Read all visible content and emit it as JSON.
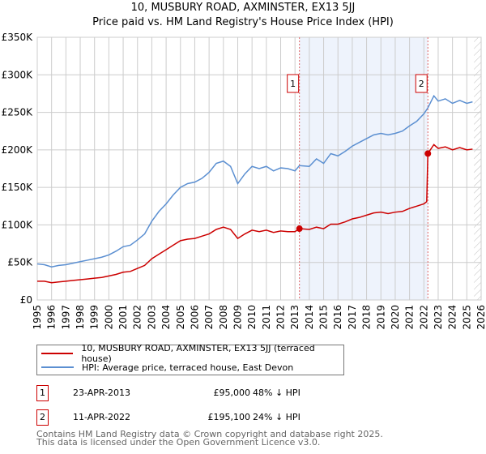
{
  "chart_data": {
    "type": "line",
    "title": "10, MUSBURY ROAD, AXMINSTER, EX13 5JJ",
    "subtitle": "Price paid vs. HM Land Registry's House Price Index (HPI)",
    "ylim": [
      0,
      350000
    ],
    "xlim": [
      1995,
      2026
    ],
    "y_ticks": [
      {
        "v": 0,
        "label": "£0"
      },
      {
        "v": 50000,
        "label": "£50K"
      },
      {
        "v": 100000,
        "label": "£100K"
      },
      {
        "v": 150000,
        "label": "£150K"
      },
      {
        "v": 200000,
        "label": "£200K"
      },
      {
        "v": 250000,
        "label": "£250K"
      },
      {
        "v": 300000,
        "label": "£300K"
      },
      {
        "v": 350000,
        "label": "£350K"
      }
    ],
    "x_ticks": [
      "1995",
      "1996",
      "1997",
      "1998",
      "1999",
      "2000",
      "2001",
      "2002",
      "2003",
      "2004",
      "2005",
      "2006",
      "2007",
      "2008",
      "2009",
      "2010",
      "2011",
      "2012",
      "2013",
      "2014",
      "2015",
      "2016",
      "2017",
      "2018",
      "2019",
      "2020",
      "2021",
      "2022",
      "2023",
      "2024",
      "2025",
      "2026"
    ],
    "grid": true,
    "shaded_range": [
      2013.31,
      2022.28
    ],
    "forecast_hatch_from": 2025.5,
    "series": [
      {
        "name": "10, MUSBURY ROAD, AXMINSTER, EX13 5JJ (terraced house)",
        "color": "#cc0000",
        "x": [
          1995,
          1995.5,
          1996,
          1996.5,
          1997,
          1997.5,
          1998,
          1998.5,
          1999,
          1999.5,
          2000,
          2000.5,
          2001,
          2001.5,
          2002,
          2002.5,
          2003,
          2003.5,
          2004,
          2004.5,
          2005,
          2005.5,
          2006,
          2006.5,
          2007,
          2007.5,
          2008,
          2008.5,
          2009,
          2009.5,
          2010,
          2010.5,
          2011,
          2011.5,
          2012,
          2012.5,
          2013,
          2013.31,
          2014,
          2014.5,
          2015,
          2015.5,
          2016,
          2016.5,
          2017,
          2017.5,
          2018,
          2018.5,
          2019,
          2019.5,
          2020,
          2020.5,
          2021,
          2021.5,
          2022,
          2022.2,
          2022.28,
          2022.7,
          2023,
          2023.5,
          2024,
          2024.5,
          2025,
          2025.4
        ],
        "y": [
          25000,
          25000,
          23000,
          24000,
          25000,
          26000,
          27000,
          28000,
          29000,
          30000,
          32000,
          34000,
          37000,
          38000,
          42000,
          46000,
          55000,
          61000,
          67000,
          73000,
          79000,
          81000,
          82000,
          85000,
          88000,
          94000,
          97000,
          94000,
          82000,
          88000,
          93000,
          91000,
          93000,
          90000,
          92000,
          91000,
          91000,
          95000,
          94000,
          97000,
          95000,
          101000,
          101000,
          104000,
          108000,
          110000,
          113000,
          116000,
          117000,
          115000,
          117000,
          118000,
          122000,
          125000,
          128000,
          131000,
          195100,
          207000,
          202000,
          204000,
          200000,
          203000,
          200000,
          201000
        ]
      },
      {
        "name": "HPI: Average price, terraced house, East Devon",
        "color": "#5b8fd1",
        "x": [
          1995,
          1995.5,
          1996,
          1996.5,
          1997,
          1997.5,
          1998,
          1998.5,
          1999,
          1999.5,
          2000,
          2000.5,
          2001,
          2001.5,
          2002,
          2002.5,
          2003,
          2003.5,
          2004,
          2004.5,
          2005,
          2005.5,
          2006,
          2006.5,
          2007,
          2007.5,
          2008,
          2008.5,
          2009,
          2009.5,
          2010,
          2010.5,
          2011,
          2011.5,
          2012,
          2012.5,
          2013,
          2013.31,
          2014,
          2014.5,
          2015,
          2015.5,
          2016,
          2016.5,
          2017,
          2017.5,
          2018,
          2018.5,
          2019,
          2019.5,
          2020,
          2020.5,
          2021,
          2021.5,
          2022,
          2022.28,
          2022.7,
          2023,
          2023.5,
          2024,
          2024.5,
          2025,
          2025.4
        ],
        "y": [
          48000,
          47000,
          44000,
          46000,
          47000,
          49000,
          51000,
          53000,
          55000,
          57000,
          60000,
          65000,
          71000,
          73000,
          80000,
          88000,
          105000,
          118000,
          128000,
          140000,
          150000,
          155000,
          157000,
          162000,
          170000,
          182000,
          185000,
          178000,
          155000,
          168000,
          178000,
          175000,
          178000,
          172000,
          176000,
          175000,
          172000,
          179000,
          178000,
          188000,
          182000,
          195000,
          192000,
          198000,
          205000,
          210000,
          215000,
          220000,
          222000,
          220000,
          222000,
          225000,
          232000,
          238000,
          248000,
          256000,
          272000,
          265000,
          268000,
          262000,
          266000,
          262000,
          264000
        ]
      }
    ],
    "markers": [
      {
        "id": "1",
        "x": 2013.31,
        "y": 95000
      },
      {
        "id": "2",
        "x": 2022.28,
        "y": 195100
      }
    ]
  },
  "legend": {
    "red": "10, MUSBURY ROAD, AXMINSTER, EX13 5JJ (terraced house)",
    "blue": "HPI: Average price, terraced house, East Devon"
  },
  "transactions": [
    {
      "id": "1",
      "date": "23-APR-2013",
      "price": "£95,000",
      "hpi": "48% ↓ HPI"
    },
    {
      "id": "2",
      "date": "11-APR-2022",
      "price": "£195,100",
      "hpi": "24% ↓ HPI"
    }
  ],
  "footer": {
    "line1": "Contains HM Land Registry data © Crown copyright and database right 2025.",
    "line2": "This data is licensed under the Open Government Licence v3.0."
  }
}
